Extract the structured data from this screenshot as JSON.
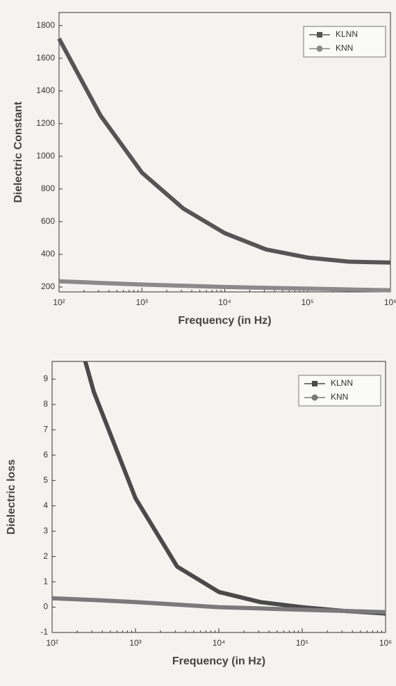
{
  "chart_data": [
    {
      "type": "line",
      "xlabel": "Frequency (in Hz)",
      "ylabel": "Dielectric Constant",
      "xscale": "log",
      "xlim": [
        100,
        1000000
      ],
      "xticks": [
        {
          "value": 100,
          "label": "10²"
        },
        {
          "value": 1000,
          "label": "10³"
        },
        {
          "value": 10000,
          "label": "10⁴"
        },
        {
          "value": 100000,
          "label": "10⁵"
        },
        {
          "value": 1000000,
          "label": "10⁶"
        }
      ],
      "ylim": [
        170,
        1880
      ],
      "yticks": [
        200,
        400,
        600,
        800,
        1000,
        1200,
        1400,
        1600,
        1800
      ],
      "legend": "upper right",
      "series": [
        {
          "name": "KLNN",
          "color": "#555555",
          "marker": "square",
          "x": [
            100,
            316,
            1000,
            3162,
            10000,
            31623,
            100000,
            316228,
            1000000
          ],
          "values": [
            1720,
            1250,
            900,
            680,
            530,
            430,
            380,
            355,
            350
          ]
        },
        {
          "name": "KNN",
          "color": "#8a8a8a",
          "marker": "circle",
          "x": [
            100,
            316,
            1000,
            3162,
            10000,
            31623,
            100000,
            316228,
            1000000
          ],
          "values": [
            235,
            225,
            215,
            208,
            200,
            195,
            190,
            185,
            180
          ]
        }
      ]
    },
    {
      "type": "line",
      "xlabel": "Frequency (in Hz)",
      "ylabel": "Dielectric loss",
      "xscale": "log",
      "xlim": [
        100,
        1000000
      ],
      "xticks": [
        {
          "value": 100,
          "label": "10²"
        },
        {
          "value": 1000,
          "label": "10³"
        },
        {
          "value": 10000,
          "label": "10⁴"
        },
        {
          "value": 100000,
          "label": "10⁵"
        },
        {
          "value": 1000000,
          "label": "10⁶"
        }
      ],
      "ylim": [
        -1,
        9.7
      ],
      "yticks": [
        -1,
        0,
        1,
        2,
        3,
        4,
        5,
        6,
        7,
        8,
        9
      ],
      "legend": "upper right",
      "series": [
        {
          "name": "KLNN",
          "color": "#4a4a4a",
          "marker": "square",
          "x": [
            250,
            316,
            1000,
            3162,
            10000,
            31623,
            100000,
            316228,
            1000000
          ],
          "values": [
            9.7,
            8.5,
            4.3,
            1.6,
            0.6,
            0.2,
            0.0,
            -0.15,
            -0.25
          ]
        },
        {
          "name": "KNN",
          "color": "#7a7a7a",
          "marker": "circle",
          "x": [
            100,
            316,
            1000,
            3162,
            10000,
            31623,
            100000,
            316228,
            1000000
          ],
          "values": [
            0.35,
            0.28,
            0.2,
            0.1,
            0.0,
            -0.05,
            -0.1,
            -0.15,
            -0.2
          ]
        }
      ]
    }
  ]
}
